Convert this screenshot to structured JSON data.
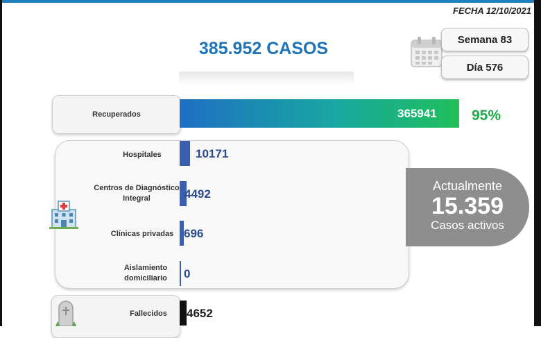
{
  "header": {
    "fecha": "FECHA 12/10/2021",
    "semana": "Semana 83",
    "dia": "Día 576"
  },
  "totals": {
    "casos": "385.952 CASOS"
  },
  "activos": {
    "prefix": "Actualmente",
    "value": "15.359",
    "suffix": "Casos activos"
  },
  "icons": [
    "calendar-icon",
    "hospital-icon",
    "tombstone-icon"
  ],
  "colors": {
    "accent": "#1f73b7",
    "recovered_start": "#1e6fc2",
    "recovered_end": "#1fbf5a",
    "activos": "#8e8e8e",
    "pct": "#1faa4a"
  },
  "chart_data": {
    "type": "bar",
    "orientation": "horizontal",
    "categories": [
      "Recuperados",
      "Hospitales",
      "Centros de Diagnóstico Integral",
      "Clínicas privadas",
      "Aislamiento domiciliario",
      "Fallecidos"
    ],
    "values": [
      365941,
      10171,
      4492,
      696,
      0,
      4652
    ],
    "value_labels": [
      "365941",
      "10171",
      "4492",
      "696",
      "0",
      "4652"
    ],
    "percent_label": "95%",
    "title": "385.952 CASOS"
  }
}
